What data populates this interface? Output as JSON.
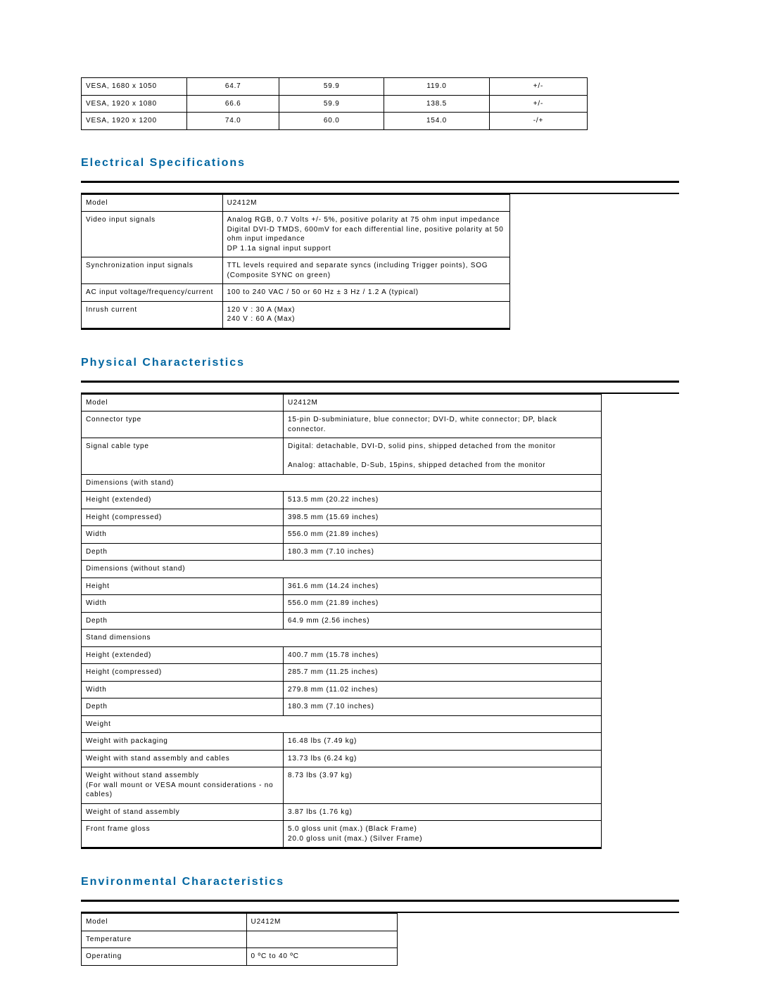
{
  "colors": {
    "heading": "#0066a1",
    "text": "#000000",
    "border": "#000000",
    "background": "#ffffff"
  },
  "timing_table": {
    "rows": [
      {
        "mode": "VESA, 1680 x 1050",
        "h": "64.7",
        "v": "59.9",
        "pix": "119.0",
        "pol": "+/-"
      },
      {
        "mode": "VESA, 1920 x 1080",
        "h": "66.6",
        "v": "59.9",
        "pix": "138.5",
        "pol": "+/-"
      },
      {
        "mode": "VESA, 1920 x 1200",
        "h": "74.0",
        "v": "60.0",
        "pix": "154.0",
        "pol": "-/+"
      }
    ]
  },
  "electrical": {
    "title": "Electrical Specifications",
    "rows": [
      {
        "label": "Model",
        "value": "U2412M"
      },
      {
        "label": "Video input signals",
        "value": "Analog RGB, 0.7 Volts +/- 5%, positive polarity at 75 ohm input impedance\nDigital DVI-D TMDS, 600mV for each differential line, positive polarity at 50 ohm input impedance\nDP 1.1a signal input support"
      },
      {
        "label": "Synchronization input signals",
        "value": "TTL levels required and separate syncs (including Trigger points), SOG (Composite SYNC on green)"
      },
      {
        "label": "AC input voltage/frequency/current",
        "value": "100 to 240 VAC / 50 or 60 Hz ± 3 Hz / 1.2 A (typical)"
      },
      {
        "label": "Inrush current",
        "value": "120 V : 30 A (Max)\n240 V : 60 A (Max)"
      }
    ]
  },
  "physical": {
    "title": "Physical Characteristics",
    "rows": [
      {
        "type": "pair",
        "label": "Model",
        "value": "U2412M"
      },
      {
        "type": "pair",
        "label": "Connector type",
        "value": "15-pin D-subminiature, blue connector; DVI-D, white connector; DP, black connector."
      },
      {
        "type": "pair",
        "label": "Signal cable type",
        "value": "Digital: detachable, DVI-D, solid pins, shipped detached from the monitor\n\nAnalog: attachable, D-Sub, 15pins, shipped detached from the monitor"
      },
      {
        "type": "span",
        "label": "Dimensions (with stand)"
      },
      {
        "type": "pair",
        "label": "Height (extended)",
        "value": "513.5 mm (20.22 inches)"
      },
      {
        "type": "pair",
        "label": "Height (compressed)",
        "value": "398.5 mm (15.69 inches)"
      },
      {
        "type": "pair",
        "label": "Width",
        "value": "556.0 mm (21.89 inches)"
      },
      {
        "type": "pair",
        "label": "Depth",
        "value": "180.3 mm (7.10 inches)"
      },
      {
        "type": "span",
        "label": "Dimensions (without stand)"
      },
      {
        "type": "pair",
        "label": "Height",
        "value": "361.6 mm (14.24 inches)"
      },
      {
        "type": "pair",
        "label": "Width",
        "value": "556.0 mm (21.89 inches)"
      },
      {
        "type": "pair",
        "label": "Depth",
        "value": "64.9 mm (2.56 inches)"
      },
      {
        "type": "span",
        "label": "Stand dimensions"
      },
      {
        "type": "pair",
        "label": "Height (extended)",
        "value": "400.7 mm (15.78 inches)"
      },
      {
        "type": "pair",
        "label": "Height (compressed)",
        "value": "285.7 mm (11.25 inches)"
      },
      {
        "type": "pair",
        "label": "Width",
        "value": "279.8 mm (11.02 inches)"
      },
      {
        "type": "pair",
        "label": "Depth",
        "value": "180.3 mm (7.10 inches)"
      },
      {
        "type": "span",
        "label": "Weight"
      },
      {
        "type": "pair",
        "label": "Weight with packaging",
        "value": "16.48 lbs (7.49 kg)"
      },
      {
        "type": "pair",
        "label": "Weight with stand assembly and cables",
        "value": "13.73 lbs (6.24 kg)"
      },
      {
        "type": "pair",
        "label": "Weight without stand assembly\n(For wall mount or VESA mount considerations - no cables)",
        "value": "8.73 lbs (3.97 kg)"
      },
      {
        "type": "pair",
        "label": "Weight of stand assembly",
        "value": "3.87 lbs (1.76 kg)"
      },
      {
        "type": "pair",
        "label": "Front frame gloss",
        "value": "5.0 gloss unit (max.) (Black Frame)\n20.0 gloss unit (max.) (Silver Frame)"
      }
    ]
  },
  "environmental": {
    "title": "Environmental Characteristics",
    "rows": [
      {
        "label": "Model",
        "value": "U2412M"
      },
      {
        "label": "Temperature",
        "value": ""
      },
      {
        "label": "Operating",
        "value": "0 ºC to 40 ºC"
      }
    ]
  }
}
